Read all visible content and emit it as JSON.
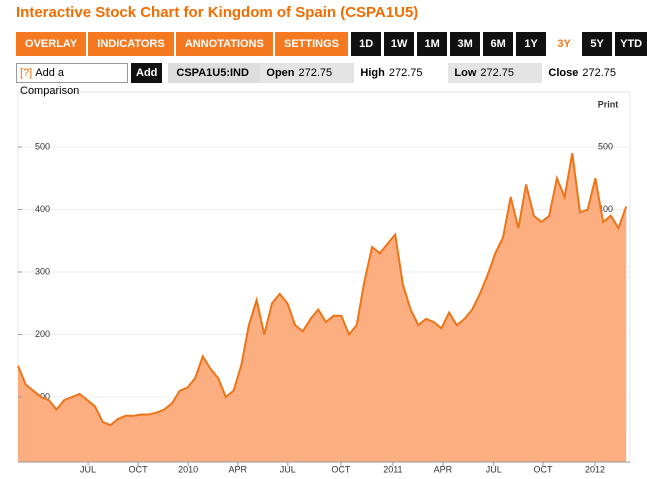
{
  "header": {
    "title": "Interactive Stock Chart for Kingdom of Spain (CSPA1U5)"
  },
  "toolbar": {
    "menus": [
      "OVERLAY ▾",
      "INDICATORS ▾",
      "ANNOTATIONS ▾",
      "SETTINGS ▾"
    ],
    "ranges": [
      "1D",
      "1W",
      "1M",
      "3M",
      "6M",
      "1Y",
      "3Y",
      "5Y",
      "YTD"
    ],
    "selected": "3Y"
  },
  "comparison": {
    "help": "[?]",
    "placeholder": "Add a Comparison",
    "button": "Add"
  },
  "quote": {
    "ticker": "CSPA1U5:IND",
    "fields": [
      {
        "label": "Open",
        "value": 272.75
      },
      {
        "label": "High",
        "value": 272.75
      },
      {
        "label": "Low",
        "value": 272.75
      },
      {
        "label": "Close",
        "value": 272.75
      }
    ]
  },
  "print": "Print",
  "chart_data": {
    "type": "area",
    "color": "#ee7418",
    "fill": "#fcae80",
    "grid": true,
    "xlim": [
      0,
      159
    ],
    "ylim": [
      -4,
      588
    ],
    "xticks": [
      {
        "value": 18.2,
        "label": "JUL"
      },
      {
        "value": 31.2,
        "label": "OCT"
      },
      {
        "value": 44.2,
        "label": "2010"
      },
      {
        "value": 57.1,
        "label": "APR"
      },
      {
        "value": 70.1,
        "label": "JUL"
      },
      {
        "value": 83.9,
        "label": "OCT"
      },
      {
        "value": 97.4,
        "label": "2011"
      },
      {
        "value": 110.4,
        "label": "APR"
      },
      {
        "value": 123.6,
        "label": "JUL"
      },
      {
        "value": 136.4,
        "label": "OCT"
      },
      {
        "value": 149.9,
        "label": "2012"
      }
    ],
    "yticks": [
      100,
      200,
      300,
      400,
      500
    ],
    "x": [
      0,
      2,
      4,
      6,
      8,
      10,
      12,
      14,
      16,
      18,
      20,
      22,
      24,
      26,
      28,
      30,
      32,
      34,
      36,
      38,
      40,
      42,
      44,
      46,
      48,
      50,
      52,
      54,
      56,
      58,
      60,
      62,
      64,
      66,
      68,
      70,
      72,
      74,
      76,
      78,
      80,
      82,
      84,
      86,
      88,
      90,
      92,
      94,
      96,
      98,
      100,
      102,
      104,
      106,
      108,
      110,
      112,
      114,
      116,
      118,
      120,
      122,
      124,
      126,
      128,
      130,
      132,
      134,
      136,
      138,
      140,
      142,
      144,
      146,
      148,
      150,
      152,
      154,
      156,
      158
    ],
    "values": [
      150,
      120,
      110,
      100,
      95,
      80,
      95,
      100,
      105,
      95,
      85,
      60,
      55,
      65,
      70,
      70,
      72,
      72,
      75,
      80,
      90,
      110,
      115,
      130,
      165,
      145,
      130,
      100,
      110,
      150,
      215,
      255,
      200,
      250,
      265,
      250,
      215,
      205,
      225,
      240,
      220,
      230,
      230,
      200,
      215,
      285,
      340,
      330,
      345,
      360,
      280,
      240,
      215,
      225,
      220,
      210,
      235,
      215,
      225,
      240,
      265,
      295,
      330,
      355,
      420,
      370,
      440,
      390,
      380,
      390,
      450,
      420,
      490,
      395,
      400,
      450,
      380,
      390,
      370,
      405
    ]
  }
}
